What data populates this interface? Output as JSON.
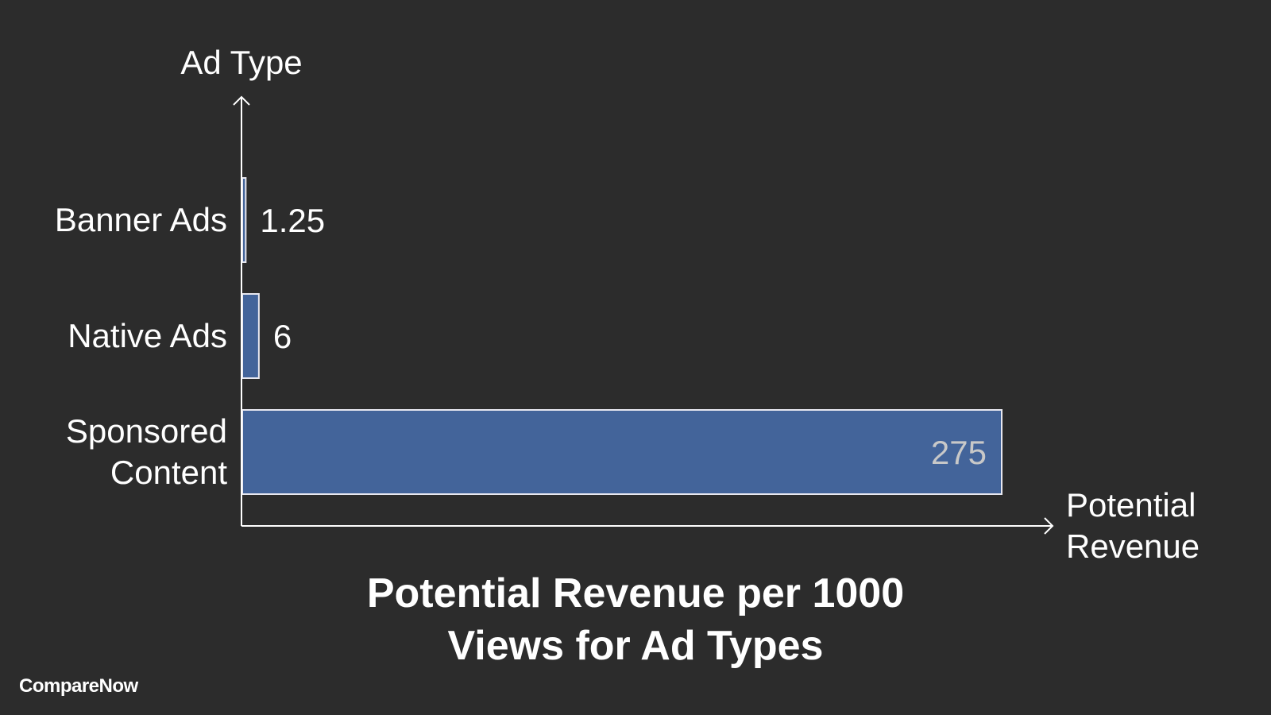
{
  "chart_data": {
    "type": "bar",
    "orientation": "horizontal",
    "title": [
      "Potential Revenue per 1000",
      "Views for Ad Types"
    ],
    "xlabel": [
      "Potential",
      "Revenue"
    ],
    "ylabel": "Ad Type",
    "categories": [
      [
        "Banner Ads"
      ],
      [
        "Native Ads"
      ],
      [
        "Sponsored",
        "Content"
      ]
    ],
    "values": [
      1.25,
      6,
      275
    ],
    "data_labels": [
      "1.25",
      "6",
      "275"
    ],
    "xlim": [
      0,
      275
    ],
    "grid": false,
    "bar_color": "#43649a",
    "bar_edge_color": "#e8e8f0"
  },
  "brand": {
    "name": "CompareNow"
  },
  "colors": {
    "background": "#2c2c2c",
    "text": "#ffffff",
    "inside_label": "#c8c8c8",
    "axis": "#ffffff"
  }
}
